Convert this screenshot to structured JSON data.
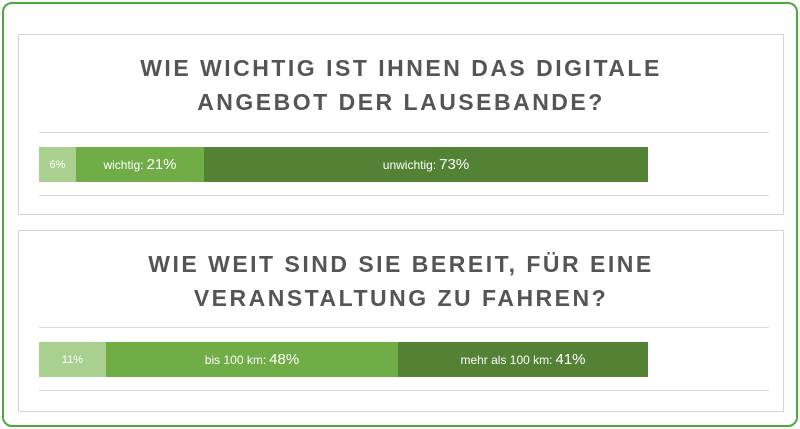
{
  "chart_data": [
    {
      "type": "bar",
      "stacked": true,
      "orientation": "horizontal",
      "title_lines": [
        "WIE WICHTIG IST IHNEN DAS DIGITALE",
        "ANGEBOT DER LAUSEBANDE?"
      ],
      "segments": [
        {
          "label": "",
          "value": 6,
          "display": "6%",
          "color": "#a9d08e"
        },
        {
          "label": "wichtig:",
          "value": 21,
          "display": "21%",
          "color": "#70ad47"
        },
        {
          "label": "unwichtig:",
          "value": 73,
          "display": "73%",
          "color": "#548235"
        }
      ]
    },
    {
      "type": "bar",
      "stacked": true,
      "orientation": "horizontal",
      "title_lines": [
        "WIE WEIT SIND SIE BEREIT, FÜR EINE",
        "VERANSTALTUNG ZU FAHREN?"
      ],
      "segments": [
        {
          "label": "",
          "value": 11,
          "display": "11%",
          "color": "#a9d08e"
        },
        {
          "label": "bis 100 km:",
          "value": 48,
          "display": "48%",
          "color": "#70ad47"
        },
        {
          "label": "mehr als 100 km:",
          "value": 41,
          "display": "41%",
          "color": "#548235"
        }
      ]
    }
  ]
}
